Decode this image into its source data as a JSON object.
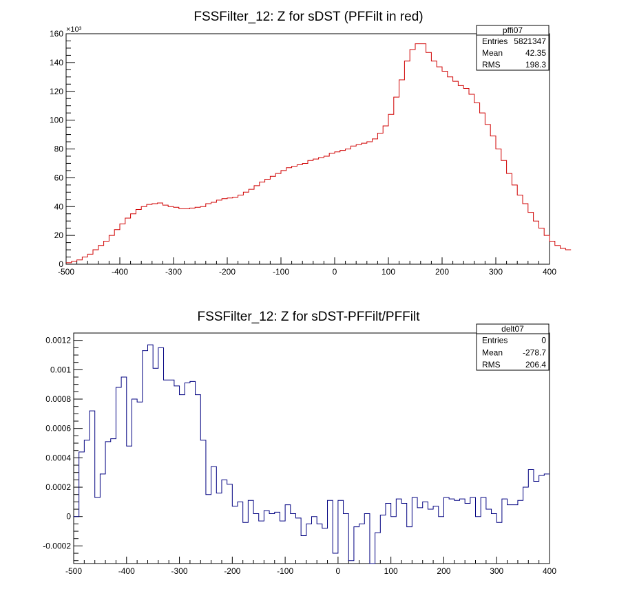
{
  "chart_data": [
    {
      "type": "histogram",
      "title": "FSSFilter_12: Z for sDST (PFFilt in red)",
      "xlabel": "",
      "ylabel": "",
      "y_multiplier": "×10³",
      "xlim": [
        -500,
        400
      ],
      "ylim": [
        0,
        160
      ],
      "bin_width": 10,
      "x_ticks": [
        "-500",
        "-400",
        "-300",
        "-200",
        "-100",
        "0",
        "100",
        "200",
        "300",
        "400"
      ],
      "y_ticks": [
        "0",
        "20",
        "40",
        "60",
        "80",
        "100",
        "120",
        "140",
        "160"
      ],
      "stats": {
        "name": "pffi07",
        "rows": [
          {
            "label": "Entries",
            "value": "5821347"
          },
          {
            "label": "Mean",
            "value": "42.35"
          },
          {
            "label": "RMS",
            "value": "198.3"
          }
        ]
      },
      "line_color": "#d00000",
      "series": [
        {
          "values": [
            1,
            2,
            3,
            5,
            7,
            10,
            13,
            16,
            20,
            24,
            28,
            32,
            35,
            38,
            40,
            41.5,
            42,
            42.5,
            41,
            40,
            39.5,
            38.5,
            38.5,
            39,
            39.5,
            40,
            42,
            43,
            44.5,
            45.5,
            46,
            46.5,
            48,
            50,
            52,
            54.5,
            57,
            59,
            61,
            63,
            65,
            67,
            68,
            69,
            70,
            72,
            73,
            74,
            75,
            77,
            78,
            79,
            80,
            82,
            83,
            84,
            85,
            87,
            91,
            96,
            104,
            116,
            128,
            141,
            149,
            153,
            153,
            147,
            141,
            137,
            134,
            130,
            127,
            124,
            122,
            118,
            112,
            105,
            97,
            89,
            80,
            72,
            63,
            55,
            48,
            42,
            36,
            30,
            25,
            20,
            16,
            13,
            11,
            10
          ]
        }
      ]
    },
    {
      "type": "histogram",
      "title": "FSSFilter_12: Z for sDST-PFFilt/PFFilt",
      "xlabel": "",
      "ylabel": "",
      "xlim": [
        -500,
        400
      ],
      "ylim": [
        -0.00032,
        0.00125
      ],
      "bin_width": 10,
      "x_ticks": [
        "-500",
        "-400",
        "-300",
        "-200",
        "-100",
        "0",
        "100",
        "200",
        "300",
        "400"
      ],
      "y_ticks": [
        "-0.0002",
        "0",
        "0.0002",
        "0.0004",
        "0.0006",
        "0.0008",
        "0.001",
        "0.0012"
      ],
      "stats": {
        "name": "delt07",
        "rows": [
          {
            "label": "Entries",
            "value": "0"
          },
          {
            "label": "Mean",
            "value": "-278.7"
          },
          {
            "label": "RMS",
            "value": "206.4"
          }
        ]
      },
      "line_color": "#000080",
      "series": [
        {
          "values": [
            0,
            0.00044,
            0.00052,
            0.00072,
            0.00013,
            0.00029,
            0.00051,
            0.00053,
            0.00088,
            0.00095,
            0.00048,
            0.0008,
            0.00078,
            0.00113,
            0.00117,
            0.00101,
            0.00115,
            0.00093,
            0.00093,
            0.00089,
            0.00083,
            0.00091,
            0.00092,
            0.00083,
            0.00052,
            0.00015,
            0.00034,
            0.00016,
            0.00025,
            0.00022,
            7e-05,
            0.0001,
            -4e-05,
            0.00011,
            2e-05,
            -3e-05,
            4e-05,
            2e-05,
            3e-05,
            -3e-05,
            8e-05,
            2e-05,
            -1e-05,
            -0.00013,
            -5e-05,
            0.0,
            -5e-05,
            -8e-05,
            0.00011,
            -0.00025,
            0.00011,
            2e-05,
            -0.0003,
            -7e-05,
            -5e-05,
            2e-05,
            -0.00032,
            -0.00011,
            1e-05,
            9e-05,
            0.0,
            0.00012,
            9e-05,
            -7e-05,
            0.00013,
            6e-05,
            0.0001,
            5e-05,
            7e-05,
            0.0,
            0.00013,
            0.00012,
            0.00011,
            0.00012,
            9e-05,
            0.00013,
            0.0,
            0.00013,
            5e-05,
            2e-05,
            -4e-05,
            0.00012,
            8e-05,
            8e-05,
            0.00011,
            0.0002,
            0.00032,
            0.00024,
            0.00028,
            0.00029
          ]
        }
      ]
    }
  ]
}
